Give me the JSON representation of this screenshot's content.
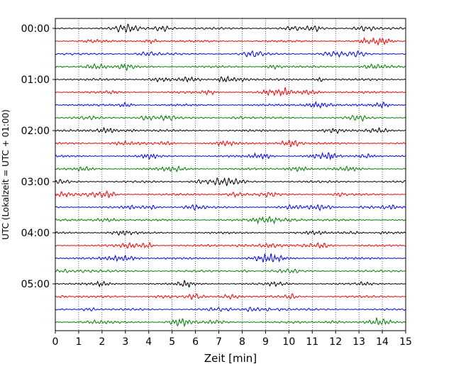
{
  "chart_data": {
    "type": "line",
    "title": "",
    "xlabel": "Zeit  [min]",
    "ylabel": "UTC (Lokalzeit = UTC + 01:00)",
    "xlim": [
      0,
      15
    ],
    "x_ticks": [
      "0",
      "1",
      "2",
      "3",
      "4",
      "5",
      "6",
      "7",
      "8",
      "9",
      "10",
      "11",
      "12",
      "13",
      "14",
      "15"
    ],
    "y_ticks": [
      "00:00",
      "01:00",
      "02:00",
      "03:00",
      "04:00",
      "05:00"
    ],
    "grid": "vertical dotted",
    "trace_colors": [
      "#000000",
      "#ff0000",
      "#0000ff",
      "#008000"
    ],
    "series": [
      {
        "offset": 0,
        "color": "#000000"
      },
      {
        "offset": 1,
        "color": "#ff0000"
      },
      {
        "offset": 2,
        "color": "#0000ff"
      },
      {
        "offset": 3,
        "color": "#008000"
      },
      {
        "offset": 4,
        "color": "#000000"
      },
      {
        "offset": 5,
        "color": "#ff0000"
      },
      {
        "offset": 6,
        "color": "#0000ff"
      },
      {
        "offset": 7,
        "color": "#008000"
      },
      {
        "offset": 8,
        "color": "#000000"
      },
      {
        "offset": 9,
        "color": "#ff0000"
      },
      {
        "offset": 10,
        "color": "#0000ff"
      },
      {
        "offset": 11,
        "color": "#008000"
      },
      {
        "offset": 12,
        "color": "#000000"
      },
      {
        "offset": 13,
        "color": "#ff0000"
      },
      {
        "offset": 14,
        "color": "#0000ff"
      },
      {
        "offset": 15,
        "color": "#008000"
      },
      {
        "offset": 16,
        "color": "#000000"
      },
      {
        "offset": 17,
        "color": "#ff0000"
      },
      {
        "offset": 18,
        "color": "#0000ff"
      },
      {
        "offset": 19,
        "color": "#008000"
      },
      {
        "offset": 20,
        "color": "#000000"
      },
      {
        "offset": 21,
        "color": "#ff0000"
      },
      {
        "offset": 22,
        "color": "#0000ff"
      },
      {
        "offset": 23,
        "color": "#008000"
      }
    ]
  }
}
